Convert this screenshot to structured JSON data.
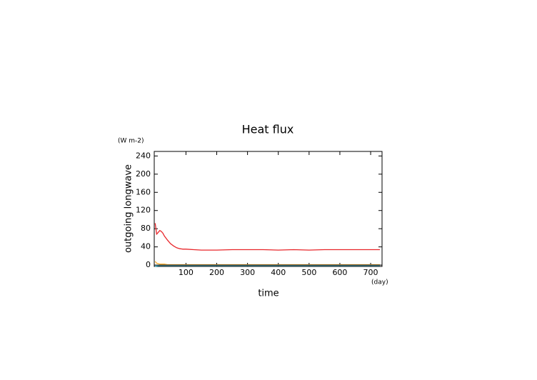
{
  "chart_data": {
    "type": "line",
    "title": "Heat flux",
    "y_unit": "(W m-2)",
    "y_label": "outgoing longwave",
    "x_label": "time",
    "x_unit": "(day)",
    "x": [
      0,
      5,
      10,
      15,
      20,
      25,
      30,
      40,
      50,
      60,
      70,
      80,
      90,
      100,
      125,
      150,
      175,
      200,
      250,
      300,
      350,
      400,
      450,
      500,
      550,
      600,
      650,
      700,
      730
    ],
    "series": [
      {
        "color": "#e8262a",
        "values": [
          92,
          68,
          72,
          76,
          74,
          70,
          64,
          55,
          47,
          42,
          38,
          36,
          35,
          35,
          34,
          33,
          33,
          33,
          34,
          34,
          34,
          33,
          34,
          33,
          34,
          34,
          34,
          34,
          34
        ]
      },
      {
        "color": "#f5a623",
        "values": [
          8,
          4,
          3,
          2,
          2,
          2,
          2,
          1,
          1,
          1,
          1,
          1,
          1,
          1,
          1,
          1,
          1,
          1,
          1,
          1,
          1,
          1,
          1,
          1,
          1,
          1,
          1,
          1,
          1
        ]
      },
      {
        "color": "#1fb8d8",
        "values": [
          -3,
          -2,
          -1.5,
          -1,
          -1,
          -1,
          -1,
          -1,
          -1,
          -1,
          -1,
          -1,
          -1,
          -1,
          -1,
          -1,
          -1,
          -1,
          -1,
          -1,
          -1,
          -1,
          -1,
          -1,
          -1,
          -1,
          -1,
          -1,
          -1
        ]
      },
      {
        "color": "#333333",
        "values": [
          0,
          0,
          0,
          0,
          0,
          0,
          0,
          0,
          0,
          0,
          0,
          0,
          0,
          0,
          0,
          0,
          0,
          0,
          0,
          0,
          0,
          0,
          0,
          0,
          0,
          0,
          0,
          0,
          0
        ]
      }
    ],
    "xlim": [
      -3,
      737
    ],
    "xticks": [
      100,
      200,
      300,
      400,
      500,
      600,
      700
    ],
    "ylim": [
      -3,
      250
    ],
    "yticks": [
      0,
      40,
      80,
      120,
      160,
      200,
      240
    ]
  }
}
